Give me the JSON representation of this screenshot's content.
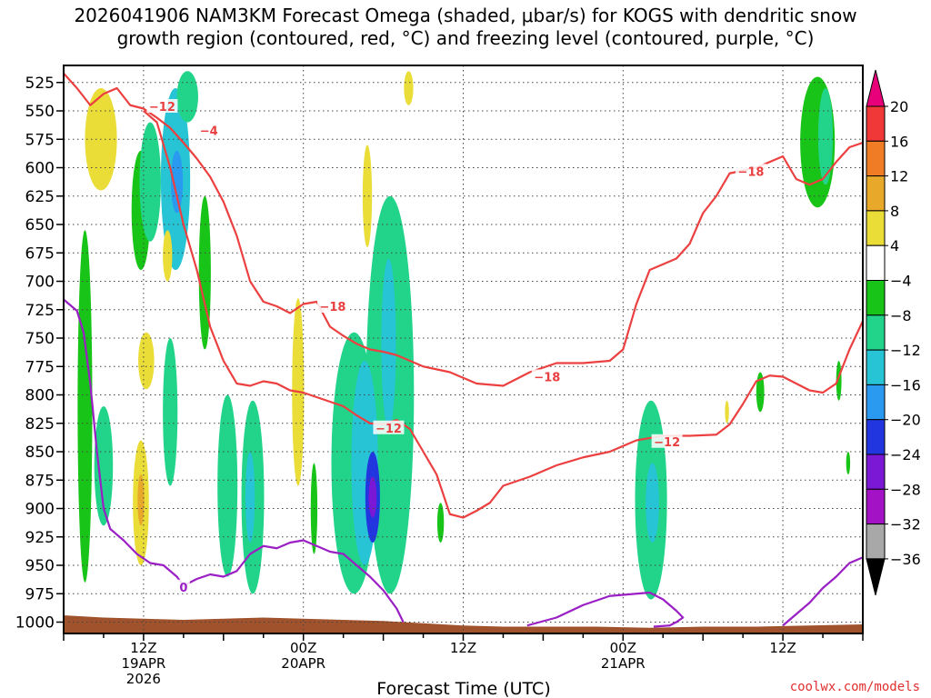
{
  "chart_data": {
    "type": "heatmap",
    "title_lines": [
      "2026041906 NAM3KM Forecast Omega (shaded, μbar/s) for KOGS with dendritic snow",
      "growth region (contoured, red, °C) and freezing level (contoured, purple, °C)"
    ],
    "xlabel": "Forecast Time (UTC)",
    "ylabel": "",
    "x_range_hours": [
      0,
      60
    ],
    "x_ticks": [
      {
        "hour": 6,
        "label": "12Z",
        "sub": "19APR",
        "sub2": "2026"
      },
      {
        "hour": 18,
        "label": "00Z",
        "sub": "20APR",
        "sub2": ""
      },
      {
        "hour": 30,
        "label": "12Z",
        "sub": "",
        "sub2": ""
      },
      {
        "hour": 42,
        "label": "00Z",
        "sub": "21APR",
        "sub2": ""
      },
      {
        "hour": 54,
        "label": "12Z",
        "sub": "",
        "sub2": ""
      }
    ],
    "y_levels": [
      525,
      550,
      575,
      600,
      625,
      650,
      675,
      700,
      725,
      750,
      775,
      800,
      825,
      850,
      875,
      900,
      925,
      950,
      975,
      1000
    ],
    "y_range_hPa": [
      510,
      1010
    ],
    "grid": true,
    "colorbar": {
      "levels": [
        20,
        16,
        12,
        8,
        4,
        -4,
        -8,
        -12,
        -16,
        -20,
        -24,
        -28,
        -32,
        -36
      ],
      "labels": [
        "20",
        "16",
        "12",
        "8",
        "4",
        "−4",
        "−8",
        "−12",
        "−16",
        "−20",
        "−24",
        "−28",
        "−32",
        "−36"
      ],
      "colors": [
        "#e8007a",
        "#f03838",
        "#f07d25",
        "#e8a82a",
        "#eadd38",
        "#ffffff",
        "#17c417",
        "#22d48a",
        "#26c4d4",
        "#2a9af0",
        "#2236e0",
        "#7a18d6",
        "#a312c4",
        "#a8a8a8",
        "#000000"
      ]
    },
    "omega_blobs": [
      {
        "hour": 1.6,
        "p_top": 655,
        "p_bot": 965,
        "hw": 0.55,
        "value": -5
      },
      {
        "hour": 3.0,
        "p_top": 810,
        "p_bot": 915,
        "hw": 0.7,
        "value": -8
      },
      {
        "hour": 2.8,
        "p_top": 530,
        "p_bot": 620,
        "hw": 1.2,
        "value": 5
      },
      {
        "hour": 5.8,
        "p_top": 585,
        "p_bot": 690,
        "hw": 0.7,
        "value": -7
      },
      {
        "hour": 6.5,
        "p_top": 560,
        "p_bot": 665,
        "hw": 0.8,
        "value": -8
      },
      {
        "hour": 8.4,
        "p_top": 530,
        "p_bot": 690,
        "hw": 1.1,
        "value": -12
      },
      {
        "hour": 8.5,
        "p_top": 585,
        "p_bot": 640,
        "hw": 0.45,
        "value": -16
      },
      {
        "hour": 9.3,
        "p_top": 515,
        "p_bot": 560,
        "hw": 0.8,
        "value": -8
      },
      {
        "hour": 6.2,
        "p_top": 745,
        "p_bot": 795,
        "hw": 0.6,
        "value": 5
      },
      {
        "hour": 5.8,
        "p_top": 840,
        "p_bot": 950,
        "hw": 0.6,
        "value": 6
      },
      {
        "hour": 5.8,
        "p_top": 870,
        "p_bot": 915,
        "hw": 0.25,
        "value": 10
      },
      {
        "hour": 7.8,
        "p_top": 655,
        "p_bot": 700,
        "hw": 0.35,
        "value": 5
      },
      {
        "hour": 8.0,
        "p_top": 750,
        "p_bot": 880,
        "hw": 0.55,
        "value": -8
      },
      {
        "hour": 10.6,
        "p_top": 625,
        "p_bot": 760,
        "hw": 0.45,
        "value": -6
      },
      {
        "hour": 12.3,
        "p_top": 800,
        "p_bot": 960,
        "hw": 0.75,
        "value": -9
      },
      {
        "hour": 14.2,
        "p_top": 805,
        "p_bot": 975,
        "hw": 0.85,
        "value": -10
      },
      {
        "hour": 14.0,
        "p_top": 850,
        "p_bot": 930,
        "hw": 0.35,
        "value": -14
      },
      {
        "hour": 17.6,
        "p_top": 715,
        "p_bot": 880,
        "hw": 0.45,
        "value": 5
      },
      {
        "hour": 18.8,
        "p_top": 860,
        "p_bot": 940,
        "hw": 0.25,
        "value": -6
      },
      {
        "hour": 22.8,
        "p_top": 580,
        "p_bot": 670,
        "hw": 0.35,
        "value": 5
      },
      {
        "hour": 21.8,
        "p_top": 745,
        "p_bot": 975,
        "hw": 1.7,
        "value": -10
      },
      {
        "hour": 24.5,
        "p_top": 625,
        "p_bot": 975,
        "hw": 1.8,
        "value": -9
      },
      {
        "hour": 22.6,
        "p_top": 770,
        "p_bot": 950,
        "hw": 1.0,
        "value": -14
      },
      {
        "hour": 23.2,
        "p_top": 850,
        "p_bot": 930,
        "hw": 0.55,
        "value": -20
      },
      {
        "hour": 23.2,
        "p_top": 872,
        "p_bot": 908,
        "hw": 0.3,
        "value": -25
      },
      {
        "hour": 24.4,
        "p_top": 680,
        "p_bot": 830,
        "hw": 0.55,
        "value": -14
      },
      {
        "hour": 28.3,
        "p_top": 895,
        "p_bot": 930,
        "hw": 0.25,
        "value": -6
      },
      {
        "hour": 44.1,
        "p_top": 805,
        "p_bot": 980,
        "hw": 1.2,
        "value": -8
      },
      {
        "hour": 44.2,
        "p_top": 860,
        "p_bot": 930,
        "hw": 0.5,
        "value": -12
      },
      {
        "hour": 49.8,
        "p_top": 805,
        "p_bot": 825,
        "hw": 0.15,
        "value": 5
      },
      {
        "hour": 52.3,
        "p_top": 780,
        "p_bot": 815,
        "hw": 0.3,
        "value": -6
      },
      {
        "hour": 56.6,
        "p_top": 520,
        "p_bot": 635,
        "hw": 1.3,
        "value": -6
      },
      {
        "hour": 57.2,
        "p_top": 530,
        "p_bot": 615,
        "hw": 0.55,
        "value": -11
      },
      {
        "hour": 58.2,
        "p_top": 770,
        "p_bot": 805,
        "hw": 0.2,
        "value": -6
      },
      {
        "hour": 58.9,
        "p_top": 850,
        "p_bot": 870,
        "hw": 0.15,
        "value": -6
      },
      {
        "hour": 25.9,
        "p_top": 515,
        "p_bot": 545,
        "hw": 0.35,
        "value": 5
      }
    ],
    "red_contours": [
      {
        "name": "-12 upper",
        "points": [
          [
            0,
            517
          ],
          [
            1,
            530
          ],
          [
            2,
            545
          ],
          [
            3,
            535
          ],
          [
            4,
            530
          ],
          [
            5,
            545
          ],
          [
            6,
            548
          ],
          [
            7,
            556
          ],
          [
            8,
            565
          ],
          [
            9,
            578
          ],
          [
            10,
            592
          ],
          [
            11,
            608
          ],
          [
            12,
            630
          ],
          [
            13,
            660
          ],
          [
            14,
            700
          ],
          [
            15,
            718
          ],
          [
            16,
            722
          ],
          [
            17,
            728
          ],
          [
            18,
            720
          ],
          [
            19,
            718
          ],
          [
            20,
            740
          ],
          [
            21,
            748
          ],
          [
            22,
            755
          ],
          [
            23,
            760
          ],
          [
            24,
            762
          ],
          [
            25,
            765
          ],
          [
            27,
            775
          ],
          [
            29,
            780
          ],
          [
            31,
            790
          ],
          [
            33,
            792
          ],
          [
            35,
            780
          ],
          [
            37,
            772
          ],
          [
            39,
            772
          ],
          [
            41,
            770
          ],
          [
            42,
            760
          ],
          [
            43,
            720
          ],
          [
            44,
            690
          ],
          [
            45,
            685
          ],
          [
            46,
            680
          ],
          [
            47,
            667
          ],
          [
            48,
            640
          ],
          [
            49,
            625
          ],
          [
            50,
            605
          ],
          [
            52,
            600
          ],
          [
            54,
            590
          ],
          [
            55,
            610
          ],
          [
            56,
            615
          ],
          [
            57,
            610
          ],
          [
            58,
            595
          ],
          [
            59,
            582
          ],
          [
            60,
            578
          ]
        ]
      },
      {
        "name": "-12 lower",
        "points": [
          [
            6,
            550
          ],
          [
            7,
            560
          ],
          [
            8,
            600
          ],
          [
            9,
            650
          ],
          [
            10,
            690
          ],
          [
            11,
            740
          ],
          [
            12,
            770
          ],
          [
            13,
            790
          ],
          [
            14,
            792
          ],
          [
            15,
            788
          ],
          [
            16,
            790
          ],
          [
            17,
            796
          ],
          [
            18,
            798
          ],
          [
            19,
            802
          ],
          [
            20,
            806
          ],
          [
            21,
            810
          ],
          [
            22,
            818
          ],
          [
            23,
            825
          ],
          [
            24,
            826
          ],
          [
            25,
            822
          ],
          [
            26,
            830
          ],
          [
            27,
            850
          ],
          [
            28,
            870
          ],
          [
            29,
            905
          ],
          [
            30,
            908
          ],
          [
            31,
            902
          ],
          [
            32,
            895
          ],
          [
            33,
            880
          ],
          [
            35,
            872
          ],
          [
            37,
            862
          ],
          [
            39,
            855
          ],
          [
            41,
            850
          ],
          [
            43,
            840
          ],
          [
            45,
            836
          ],
          [
            47,
            836
          ],
          [
            49,
            835
          ],
          [
            50,
            826
          ],
          [
            51,
            808
          ],
          [
            52,
            788
          ],
          [
            53,
            783
          ],
          [
            54,
            784
          ],
          [
            55,
            790
          ],
          [
            56,
            796
          ],
          [
            57,
            798
          ],
          [
            58,
            790
          ],
          [
            59,
            760
          ],
          [
            60,
            735
          ]
        ]
      }
    ],
    "red_contour_labels": [
      {
        "text": "−12",
        "hour": 7.4,
        "p": 546
      },
      {
        "text": "−4",
        "hour": 10.9,
        "p": 567
      },
      {
        "text": "−18",
        "hour": 20.2,
        "p": 722
      },
      {
        "text": "−12",
        "hour": 24.4,
        "p": 829
      },
      {
        "text": "−18",
        "hour": 36.3,
        "p": 784
      },
      {
        "text": "−12",
        "hour": 45.3,
        "p": 841
      },
      {
        "text": "−18",
        "hour": 51.6,
        "p": 603
      }
    ],
    "purple_contours": [
      {
        "name": "0 left",
        "points": [
          [
            0,
            716
          ],
          [
            1,
            726
          ],
          [
            1.5,
            745
          ],
          [
            2,
            790
          ],
          [
            2.5,
            850
          ],
          [
            3,
            900
          ],
          [
            3.5,
            918
          ],
          [
            4.5,
            928
          ],
          [
            5.5,
            940
          ],
          [
            6.5,
            948
          ],
          [
            7.5,
            950
          ],
          [
            8.5,
            960
          ],
          [
            9,
            968
          ],
          [
            10,
            962
          ],
          [
            11,
            958
          ],
          [
            12,
            960
          ],
          [
            13,
            955
          ],
          [
            14,
            940
          ],
          [
            15,
            933
          ],
          [
            16,
            935
          ],
          [
            17,
            930
          ],
          [
            18,
            928
          ],
          [
            19,
            933
          ],
          [
            20,
            938
          ],
          [
            21,
            940
          ],
          [
            22,
            950
          ],
          [
            23,
            960
          ],
          [
            24,
            972
          ],
          [
            25,
            988
          ],
          [
            25.5,
            1000
          ]
        ]
      },
      {
        "name": "0 right",
        "points": [
          [
            34.8,
            1003
          ],
          [
            37,
            996
          ],
          [
            39,
            985
          ],
          [
            41,
            977
          ],
          [
            43,
            975
          ],
          [
            44,
            974
          ],
          [
            45,
            980
          ],
          [
            46,
            990
          ],
          [
            46.5,
            996
          ],
          [
            46,
            1000
          ],
          [
            45.5,
            1003
          ],
          [
            44.3,
            1004
          ]
        ]
      },
      {
        "name": "0 far right",
        "points": [
          [
            54,
            1003
          ],
          [
            55,
            993
          ],
          [
            56,
            983
          ],
          [
            57,
            970
          ],
          [
            58,
            960
          ],
          [
            59,
            948
          ],
          [
            60,
            943
          ]
        ]
      }
    ],
    "purple_contour_labels": [
      {
        "text": "0",
        "hour": 9.0,
        "p": 969
      }
    ],
    "terrain": {
      "color": "#a0522d",
      "points": [
        [
          0,
          994
        ],
        [
          3,
          996
        ],
        [
          6,
          997
        ],
        [
          9,
          998
        ],
        [
          12,
          997
        ],
        [
          15,
          996
        ],
        [
          18,
          997
        ],
        [
          21,
          998
        ],
        [
          24,
          999
        ],
        [
          27,
          1001
        ],
        [
          30,
          1003
        ],
        [
          33,
          1004
        ],
        [
          36,
          1004
        ],
        [
          40,
          1004
        ],
        [
          44,
          1005
        ],
        [
          48,
          1004
        ],
        [
          52,
          1004
        ],
        [
          56,
          1003
        ],
        [
          60,
          1002
        ]
      ]
    }
  },
  "credit": "coolwx.com/models"
}
